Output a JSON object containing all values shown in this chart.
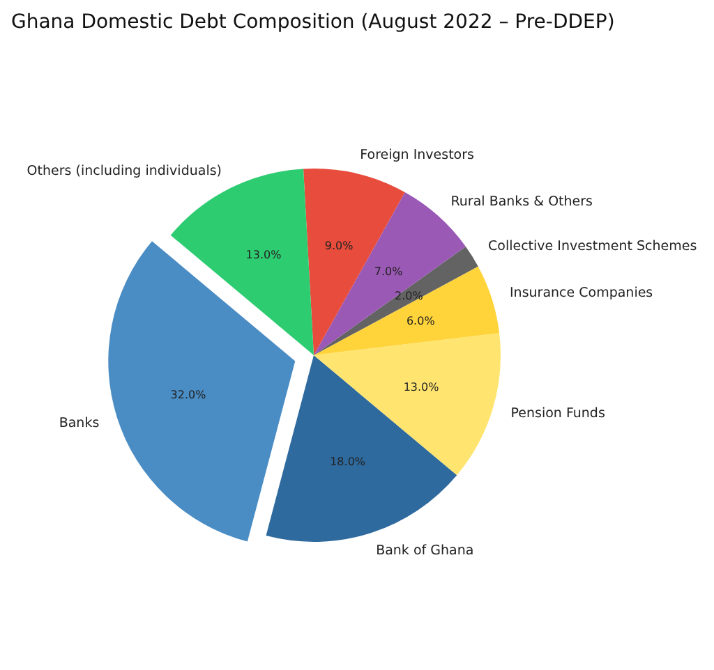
{
  "chart_data": {
    "type": "pie",
    "title": "Ghana Domestic Debt Composition (August 2022 – Pre-DDEP)",
    "categories": [
      "Banks",
      "Bank of Ghana",
      "Pension Funds",
      "Insurance Companies",
      "Collective Investment Schemes",
      "Rural Banks & Others",
      "Foreign Investors",
      "Others (including individuals)"
    ],
    "values": [
      32,
      18,
      13,
      6,
      2,
      7,
      9,
      13
    ],
    "colors": [
      "#4a8cc4",
      "#2e6a9e",
      "#ffe570",
      "#ffd43b",
      "#636363",
      "#9b59b6",
      "#e74c3c",
      "#2ecc71"
    ],
    "value_labels": [
      "32.0%",
      "18.0%",
      "13.0%",
      "6.0%",
      "2.0%",
      "7.0%",
      "9.0%",
      "13.0%"
    ]
  }
}
